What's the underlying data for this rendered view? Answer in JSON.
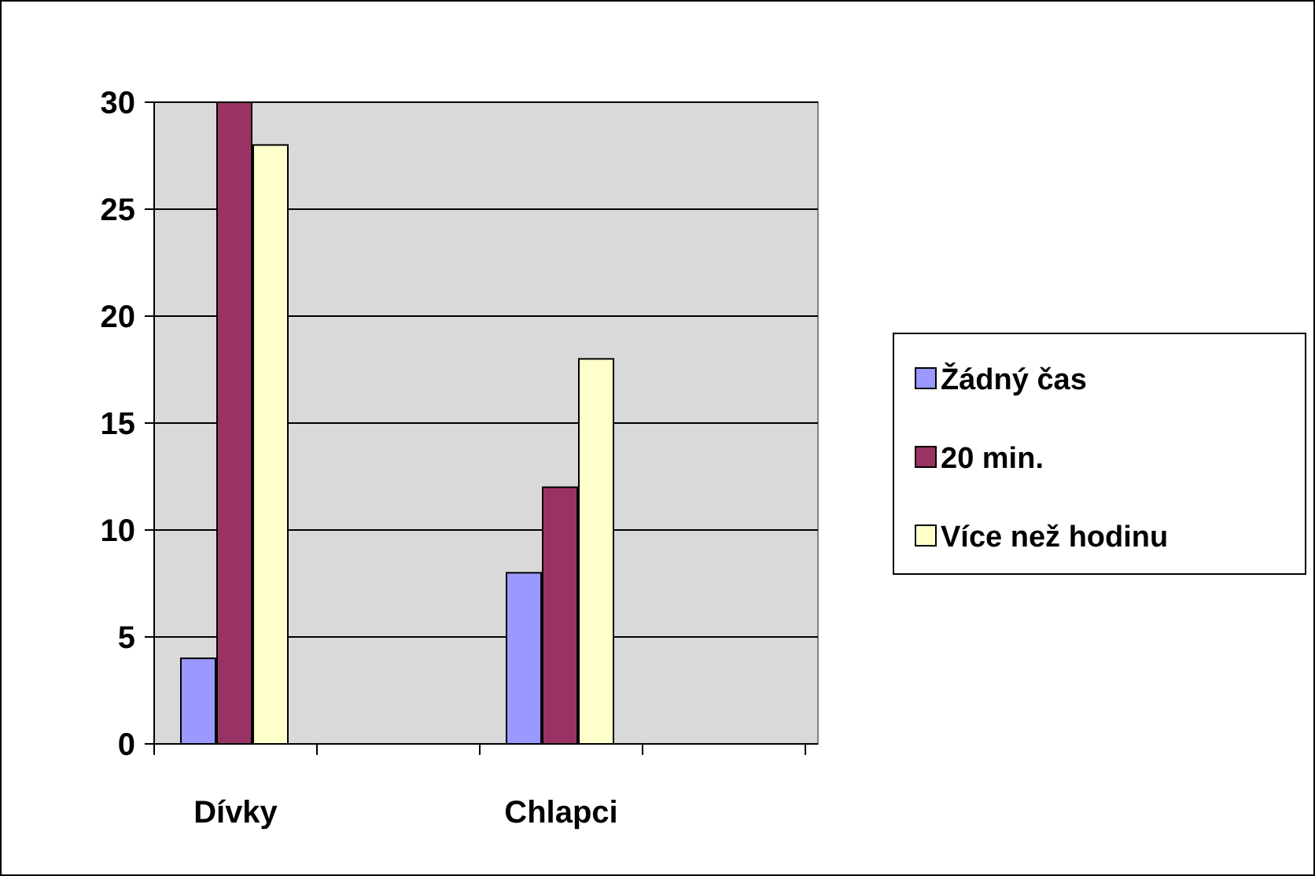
{
  "chart_data": {
    "type": "bar",
    "categories": [
      "Dívky",
      null,
      "Chlapci",
      null
    ],
    "series": [
      {
        "name": "Žádný čas",
        "color": "#9999ff",
        "values": [
          4,
          null,
          8,
          null
        ]
      },
      {
        "name": "20 min.",
        "color": "#993366",
        "values": [
          30,
          null,
          12,
          null
        ]
      },
      {
        "name": "Více než hodinu",
        "color": "#ffffcc",
        "values": [
          28,
          null,
          18,
          null
        ]
      }
    ],
    "ylim": [
      0,
      30
    ],
    "yticks": [
      0,
      5,
      10,
      15,
      20,
      25,
      30
    ],
    "grid": "y",
    "legend": "right"
  }
}
